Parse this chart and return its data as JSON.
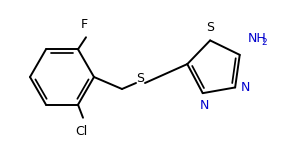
{
  "bg_color": "#ffffff",
  "line_color": "#000000",
  "text_color": "#000000",
  "nh2_color": "#0000cd",
  "n_color": "#0000cd",
  "figsize": [
    3.0,
    1.55
  ],
  "dpi": 100,
  "F_label": "F",
  "Cl_label": "Cl",
  "S_link_label": "S",
  "S_ring_label": "S",
  "NH2_label": "NH",
  "two_label": "2",
  "N_label": "N"
}
